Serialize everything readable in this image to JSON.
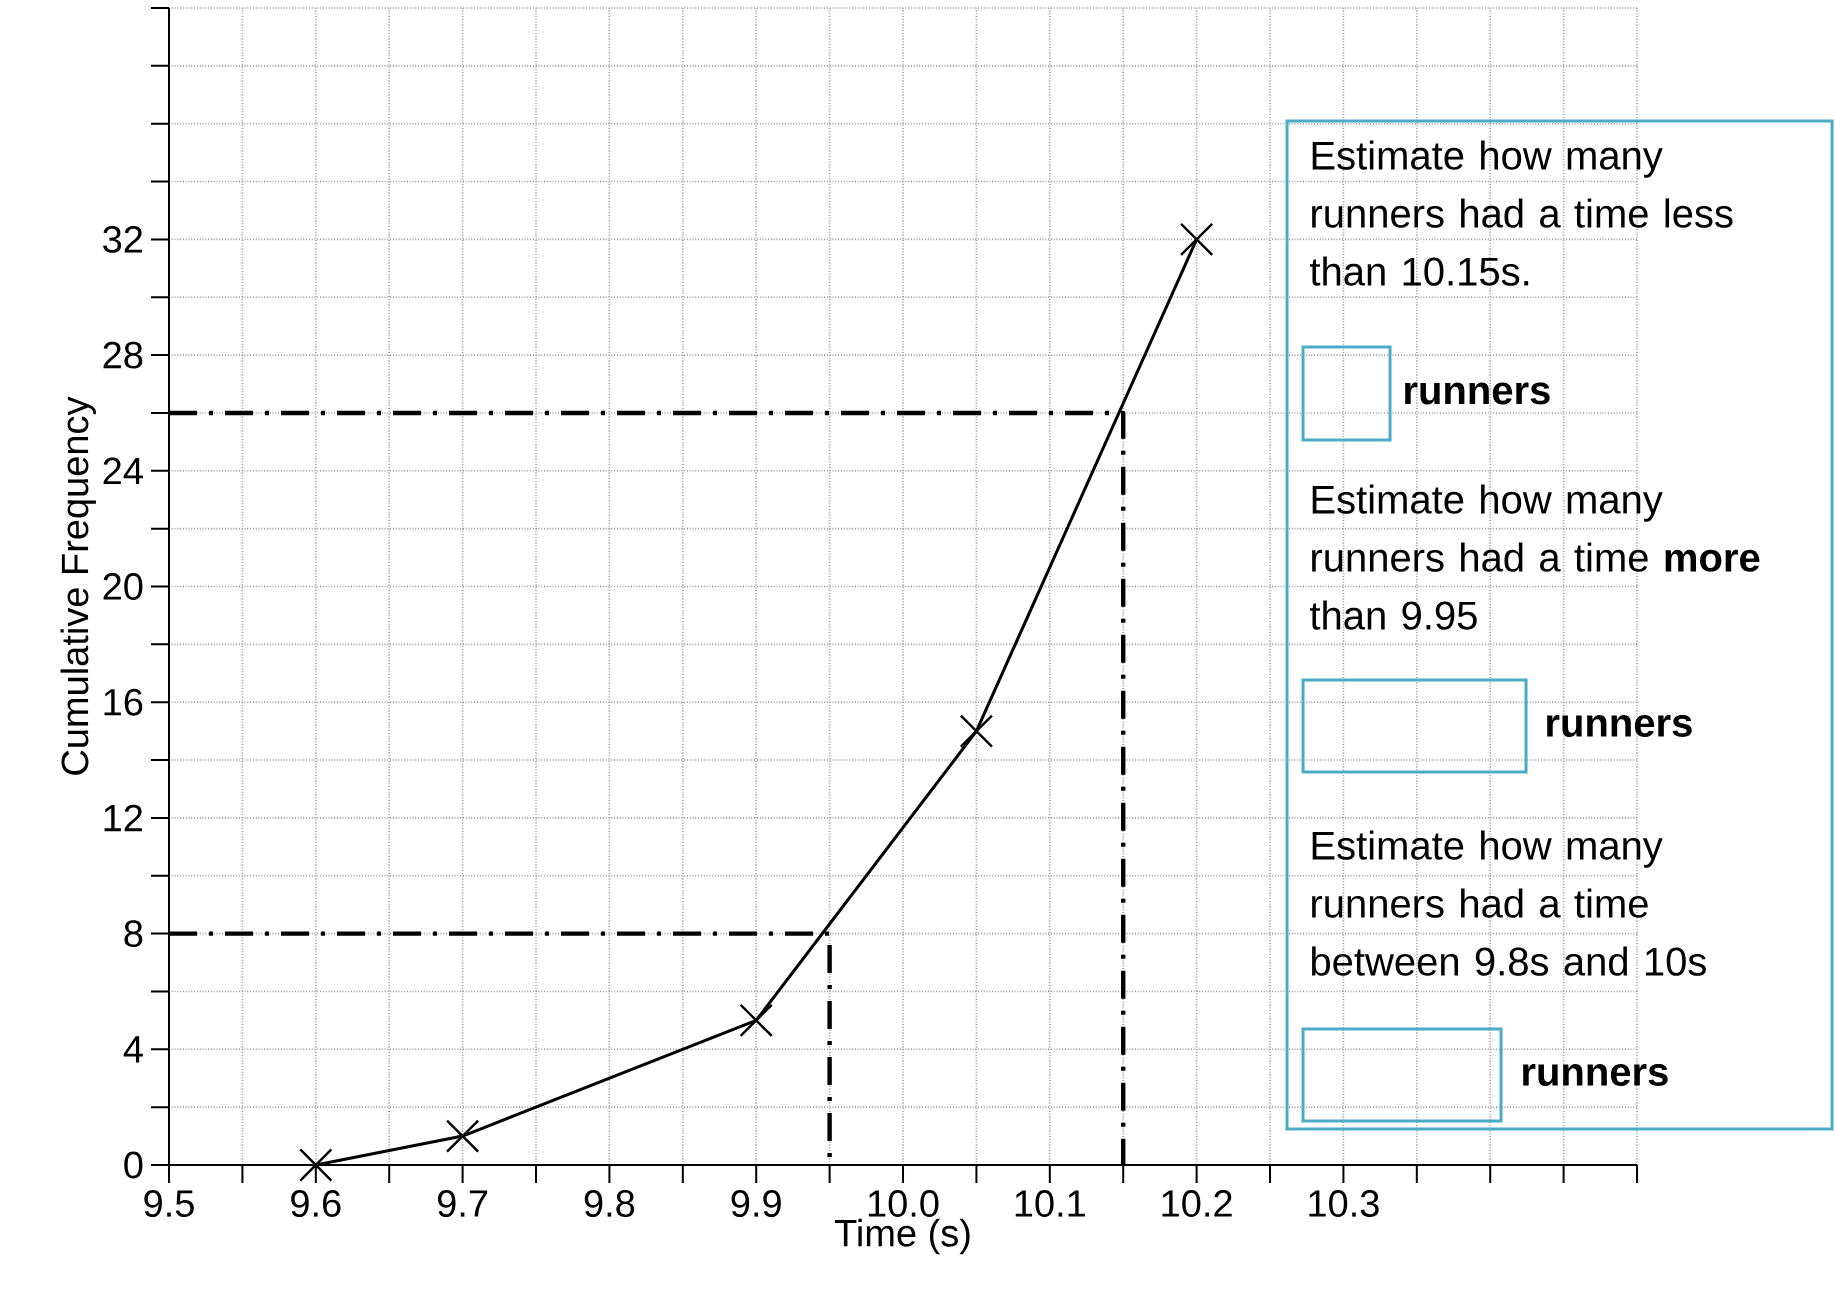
{
  "chart_data": {
    "type": "line",
    "xlabel": "Time (s)",
    "ylabel": "Cumulative Frequency",
    "xlim": [
      9.5,
      10.5
    ],
    "ylim": [
      0,
      40
    ],
    "xticks": [
      9.5,
      {
        "value": 9.55,
        "label": null
      },
      9.6,
      {
        "value": 9.65,
        "label": null
      },
      9.7,
      {
        "value": 9.75,
        "label": null
      },
      9.8,
      {
        "value": 9.85,
        "label": null
      },
      9.9,
      {
        "value": 9.95,
        "label": null
      },
      {
        "value": 10,
        "label": "10.0"
      },
      {
        "value": 10.05,
        "label": null
      },
      10.1,
      {
        "value": 10.15,
        "label": null
      },
      10.2,
      {
        "value": 10.25,
        "label": null
      },
      10.3,
      {
        "value": 10.35,
        "label": null
      },
      {
        "value": 10.4,
        "label": null
      },
      {
        "value": 10.45,
        "label": null
      },
      {
        "value": 10.5,
        "label": null
      }
    ],
    "yticks": [
      0,
      {
        "value": 2,
        "label": null
      },
      4,
      {
        "value": 6,
        "label": null
      },
      8,
      {
        "value": 10,
        "label": null
      },
      12,
      {
        "value": 14,
        "label": null
      },
      16,
      {
        "value": 18,
        "label": null
      },
      20,
      {
        "value": 22,
        "label": null
      },
      24,
      {
        "value": 26,
        "label": null
      },
      28,
      {
        "value": 30,
        "label": null
      },
      32,
      {
        "value": 34,
        "label": null
      },
      {
        "value": 36,
        "label": null
      },
      {
        "value": 38,
        "label": null
      },
      {
        "value": 40,
        "label": null
      }
    ],
    "grid": true,
    "series": [
      {
        "color": "#000000",
        "marker": "cross",
        "line_style": "solid",
        "x": [
          9.6,
          9.7,
          9.9,
          10.05,
          10.2
        ],
        "values": [
          0,
          1,
          5,
          15,
          32
        ]
      },
      {
        "color": "#000000",
        "line_style": "dashed",
        "x": [
          9.5,
          9.95,
          9.95
        ],
        "values": [
          8,
          8,
          0
        ]
      },
      {
        "color": "#000000",
        "line_style": "dashed",
        "x": [
          9.5,
          10.15,
          10.15
        ],
        "values": [
          26,
          26,
          0
        ]
      }
    ],
    "annotations": [
      "Estimate how many runners had a time less than 10.15s.",
      "runners",
      "Estimate how many runners had a time **more** than 9.95",
      "runners",
      "Estimate how many runners had a time between 9.8s and 10s",
      "runners"
    ]
  }
}
